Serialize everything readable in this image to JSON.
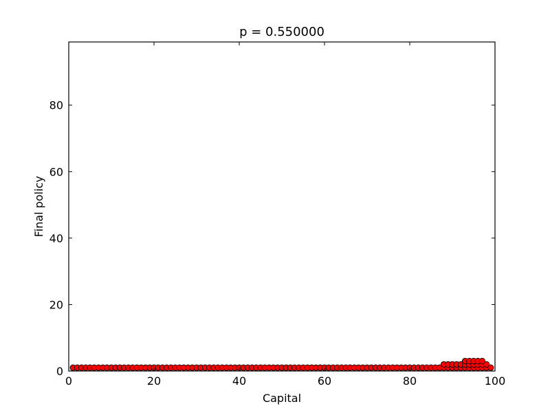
{
  "chart_data": {
    "type": "scatter",
    "title": "p = 0.550000",
    "xlabel": "Capital",
    "ylabel": "Final policy",
    "xlim": [
      0,
      100
    ],
    "ylim": [
      0,
      99
    ],
    "xticks": [
      0,
      20,
      40,
      60,
      80,
      100
    ],
    "yticks": [
      0,
      20,
      40,
      60,
      80
    ],
    "grid": false,
    "marker": "circle",
    "marker_color": "#ff0000",
    "marker_edge_color": "#000000",
    "series": [
      {
        "x": [
          1,
          2,
          3,
          4,
          5,
          6,
          7,
          8,
          9,
          10,
          11,
          12,
          13,
          14,
          15,
          16,
          17,
          18,
          19,
          20,
          21,
          22,
          23,
          24,
          25,
          26,
          27,
          28,
          29,
          30,
          31,
          32,
          33,
          34,
          35,
          36,
          37,
          38,
          39,
          40,
          41,
          42,
          43,
          44,
          45,
          46,
          47,
          48,
          49,
          50,
          51,
          52,
          53,
          54,
          55,
          56,
          57,
          58,
          59,
          60,
          61,
          62,
          63,
          64,
          65,
          66,
          67,
          68,
          69,
          70,
          71,
          72,
          73,
          74,
          75,
          76,
          77,
          78,
          79,
          80,
          81,
          82,
          83,
          84,
          85,
          86,
          87,
          88,
          88,
          89,
          89,
          90,
          90,
          91,
          91,
          92,
          92,
          93,
          93,
          93,
          94,
          94,
          94,
          95,
          95,
          95,
          96,
          96,
          96,
          97,
          97,
          97,
          98,
          98,
          99
        ],
        "y": [
          1,
          1,
          1,
          1,
          1,
          1,
          1,
          1,
          1,
          1,
          1,
          1,
          1,
          1,
          1,
          1,
          1,
          1,
          1,
          1,
          1,
          1,
          1,
          1,
          1,
          1,
          1,
          1,
          1,
          1,
          1,
          1,
          1,
          1,
          1,
          1,
          1,
          1,
          1,
          1,
          1,
          1,
          1,
          1,
          1,
          1,
          1,
          1,
          1,
          1,
          1,
          1,
          1,
          1,
          1,
          1,
          1,
          1,
          1,
          1,
          1,
          1,
          1,
          1,
          1,
          1,
          1,
          1,
          1,
          1,
          1,
          1,
          1,
          1,
          1,
          1,
          1,
          1,
          1,
          1,
          1,
          1,
          1,
          1,
          1,
          1,
          1,
          1,
          2,
          1,
          2,
          1,
          2,
          1,
          2,
          1,
          2,
          1,
          2,
          3,
          1,
          2,
          3,
          1,
          2,
          3,
          1,
          2,
          3,
          1,
          2,
          3,
          1,
          2,
          1
        ]
      }
    ]
  }
}
